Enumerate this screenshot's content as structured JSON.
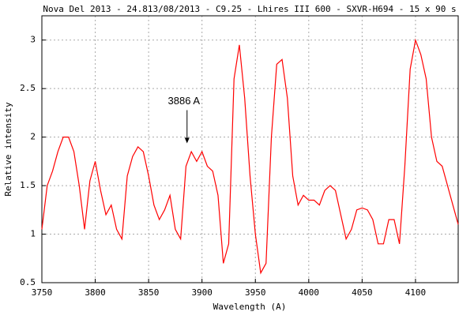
{
  "chart_data": {
    "type": "line",
    "title": "Nova Del 2013 - 24.813/08/2013 - C9.25 - Lhires III 600 - SXVR-H694 - 15 x 90 s",
    "xlabel": "Wavelength (A)",
    "ylabel": "Relative intensity",
    "xlim": [
      3750,
      4140
    ],
    "ylim": [
      0.5,
      3.25
    ],
    "xticks": [
      3750,
      3800,
      3850,
      3900,
      3950,
      4000,
      4050,
      4100
    ],
    "yticks": [
      0.5,
      1,
      1.5,
      2,
      2.5,
      3
    ],
    "grid": true,
    "annotation": {
      "text": "3886 A",
      "x": 3886,
      "y": 1.92
    },
    "x": [
      3750,
      3755,
      3760,
      3765,
      3770,
      3775,
      3780,
      3785,
      3790,
      3795,
      3800,
      3805,
      3810,
      3815,
      3820,
      3825,
      3830,
      3835,
      3840,
      3845,
      3850,
      3855,
      3860,
      3865,
      3870,
      3875,
      3880,
      3885,
      3890,
      3895,
      3900,
      3905,
      3910,
      3915,
      3920,
      3925,
      3930,
      3935,
      3940,
      3945,
      3950,
      3955,
      3960,
      3965,
      3970,
      3975,
      3980,
      3985,
      3990,
      3995,
      4000,
      4005,
      4010,
      4015,
      4020,
      4025,
      4030,
      4035,
      4040,
      4045,
      4050,
      4055,
      4060,
      4065,
      4070,
      4075,
      4080,
      4085,
      4090,
      4095,
      4100,
      4105,
      4110,
      4115,
      4120,
      4125,
      4130,
      4135,
      4140
    ],
    "series": [
      {
        "color": "#ff0000",
        "values": [
          1.05,
          1.5,
          1.65,
          1.85,
          2.0,
          2.0,
          1.85,
          1.5,
          1.05,
          1.55,
          1.75,
          1.45,
          1.2,
          1.3,
          1.05,
          0.95,
          1.6,
          1.8,
          1.9,
          1.85,
          1.6,
          1.3,
          1.15,
          1.25,
          1.4,
          1.05,
          0.95,
          1.7,
          1.85,
          1.75,
          1.85,
          1.7,
          1.65,
          1.4,
          0.7,
          0.9,
          2.6,
          2.95,
          2.4,
          1.6,
          1.0,
          0.6,
          0.7,
          2.0,
          2.75,
          2.8,
          2.4,
          1.6,
          1.3,
          1.4,
          1.35,
          1.35,
          1.3,
          1.45,
          1.5,
          1.45,
          1.2,
          0.95,
          1.05,
          1.25,
          1.27,
          1.25,
          1.15,
          0.9,
          0.9,
          1.15,
          1.15,
          0.9,
          1.7,
          2.7,
          3.0,
          2.85,
          2.6,
          2.0,
          1.75,
          1.7,
          1.5,
          1.3,
          1.1
        ]
      }
    ]
  }
}
